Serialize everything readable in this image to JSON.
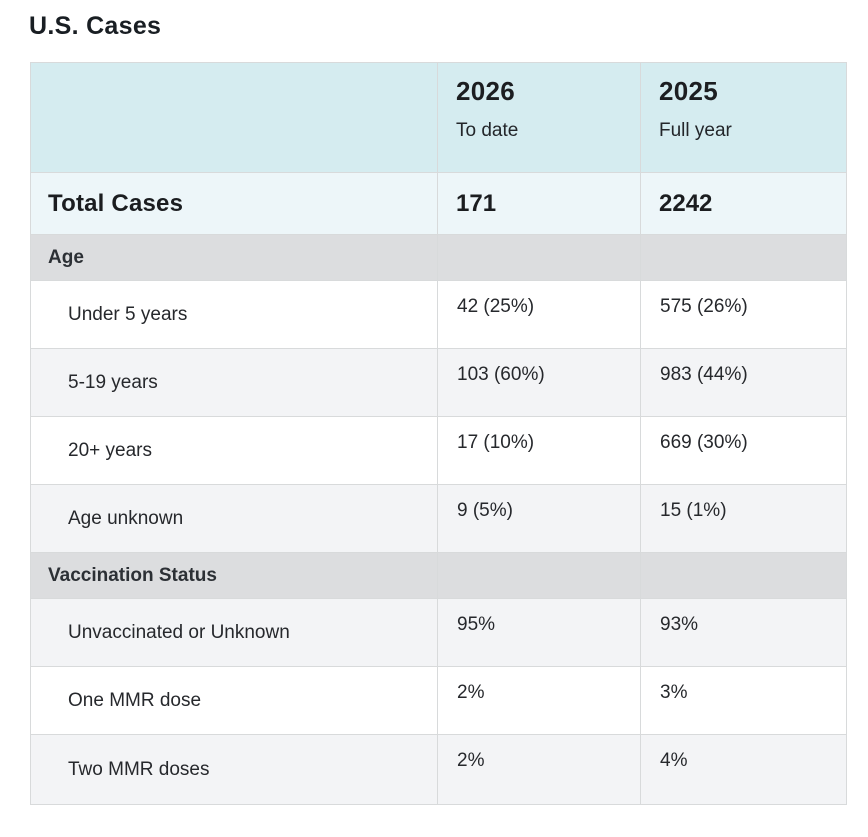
{
  "page": {
    "title": "U.S. Cases"
  },
  "table": {
    "columns": [
      {
        "year": "2026",
        "period": "To date"
      },
      {
        "year": "2025",
        "period": "Full year"
      }
    ],
    "total_row": {
      "label": "Total Cases",
      "values": [
        "171",
        "2242"
      ]
    },
    "sections": [
      {
        "label": "Age",
        "rows": [
          {
            "label": "Under 5 years",
            "values": [
              "42 (25%)",
              "575 (26%)"
            ]
          },
          {
            "label": "5-19 years",
            "values": [
              "103 (60%)",
              "983 (44%)"
            ]
          },
          {
            "label": "20+ years",
            "values": [
              "17 (10%)",
              "669 (30%)"
            ]
          },
          {
            "label": "Age unknown",
            "values": [
              "9 (5%)",
              "15 (1%)"
            ]
          }
        ]
      },
      {
        "label": "Vaccination Status",
        "rows": [
          {
            "label": "Unvaccinated or Unknown",
            "values": [
              "95%",
              "93%"
            ]
          },
          {
            "label": "One MMR dose",
            "values": [
              "2%",
              "3%"
            ]
          },
          {
            "label": "Two MMR doses",
            "values": [
              "2%",
              "4%"
            ]
          }
        ]
      }
    ],
    "colors": {
      "header_bg": "#d5ecf0",
      "total_row_bg": "#edf6f9",
      "section_header_bg": "#dcdddf",
      "zebra_row_bg": "#f3f4f6",
      "row_bg": "#ffffff",
      "border": "#d8dadb",
      "text": "#212326"
    }
  },
  "chart_data": {
    "type": "table",
    "title": "U.S. Cases",
    "columns": [
      "",
      "2026 To date",
      "2025 Full year"
    ],
    "rows": [
      [
        "Total Cases",
        "171",
        "2242"
      ],
      [
        "Age",
        "",
        ""
      ],
      [
        "Under 5 years",
        "42 (25%)",
        "575 (26%)"
      ],
      [
        "5-19 years",
        "103 (60%)",
        "983 (44%)"
      ],
      [
        "20+ years",
        "17 (10%)",
        "669 (30%)"
      ],
      [
        "Age unknown",
        "9 (5%)",
        "15 (1%)"
      ],
      [
        "Vaccination Status",
        "",
        ""
      ],
      [
        "Unvaccinated or Unknown",
        "95%",
        "93%"
      ],
      [
        "One MMR dose",
        "2%",
        "3%"
      ],
      [
        "Two MMR doses",
        "2%",
        "4%"
      ]
    ]
  }
}
